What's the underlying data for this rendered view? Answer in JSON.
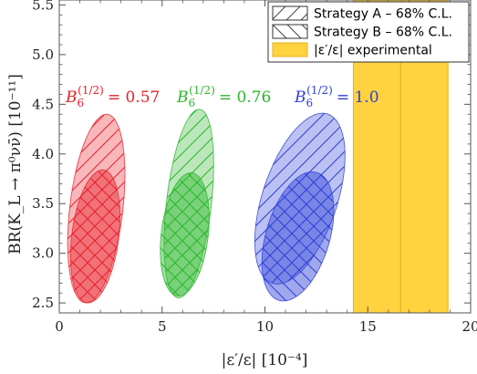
{
  "chart_data": {
    "type": "scatter",
    "xlabel": "|ε′/ε|  [10⁻⁴]",
    "ylabel": "BR(K_L → π⁰νν̄)  [10⁻¹¹]",
    "xlim": [
      0,
      20
    ],
    "ylim": [
      2.4,
      5.55
    ],
    "x_ticks": [
      "0",
      "5",
      "10",
      "15",
      "20"
    ],
    "y_ticks": [
      "2.5",
      "3.0",
      "3.5",
      "4.0",
      "4.5",
      "5.0",
      "5.5"
    ],
    "x_tick_values": [
      0,
      5,
      10,
      15,
      20
    ],
    "y_tick_values": [
      2.5,
      3.0,
      3.5,
      4.0,
      4.5,
      5.0,
      5.5
    ],
    "grid": false,
    "legend_position": "top-right",
    "legend": [
      {
        "label": "Strategy A – 68% C.L.",
        "kind": "hatch-a"
      },
      {
        "label": "Strategy B – 68% C.L.",
        "kind": "hatch-b"
      },
      {
        "label": "|ε′/ε| experimental",
        "kind": "band"
      }
    ],
    "experimental_band": {
      "x_min": 14.3,
      "x_max": 18.9,
      "center": 16.6,
      "color": "#FFD23F",
      "edge_color": "#E8B020"
    },
    "groups": [
      {
        "label_prefix": "B",
        "label_sup": "(1/2)",
        "label_sub": "6",
        "label_value": "= 0.57",
        "color": "#E8202A",
        "strategy_a": {
          "cx": 1.8,
          "cy": 3.45,
          "rx": 1.3,
          "ry": 0.95,
          "tilt": 1.0
        },
        "strategy_b": {
          "cx": 1.75,
          "cy": 3.17,
          "rx": 1.15,
          "ry": 0.67,
          "tilt": 0.7
        }
      },
      {
        "label_prefix": "B",
        "label_sup": "(1/2)",
        "label_sub": "6",
        "label_value": "= 0.76",
        "color": "#2BB52B",
        "strategy_a": {
          "cx": 6.3,
          "cy": 3.5,
          "rx": 1.1,
          "ry": 0.95,
          "tilt": 1.0
        },
        "strategy_b": {
          "cx": 6.1,
          "cy": 3.19,
          "rx": 1.15,
          "ry": 0.62,
          "tilt": 0.6
        }
      },
      {
        "label_prefix": "B",
        "label_sup": "(1/2)",
        "label_sub": "6",
        "label_value": "= 1.0",
        "color": "#2C3FD8",
        "strategy_a": {
          "cx": 11.7,
          "cy": 3.55,
          "rx": 1.9,
          "ry": 0.86,
          "tilt": 2.2
        },
        "strategy_b": {
          "cx": 11.6,
          "cy": 3.17,
          "rx": 1.6,
          "ry": 0.65,
          "tilt": 1.4
        }
      }
    ]
  }
}
